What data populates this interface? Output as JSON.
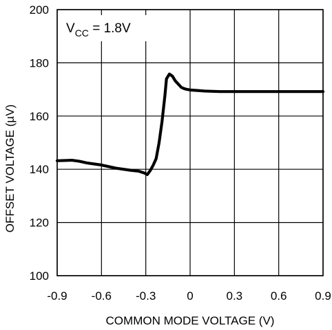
{
  "chart_data": {
    "type": "line",
    "title": "",
    "xlabel": "COMMON MODE VOLTAGE (V)",
    "ylabel": "OFFSET VOLTAGE (µV)",
    "xlim": [
      -0.9,
      0.9
    ],
    "ylim": [
      100,
      200
    ],
    "xticks": [
      "-0.9",
      "-0.6",
      "-0.3",
      "0",
      "0.3",
      "0.6",
      "0.9"
    ],
    "yticks": [
      "100",
      "120",
      "140",
      "160",
      "180",
      "200"
    ],
    "grid": true,
    "annotation": {
      "main": "V",
      "subscript": "CC",
      "value": " = 1.8V"
    },
    "series": [
      {
        "x": [
          -0.9,
          -0.8,
          -0.75,
          -0.7,
          -0.6,
          -0.5,
          -0.4,
          -0.35,
          -0.31,
          -0.29,
          -0.27,
          -0.25,
          -0.23,
          -0.21,
          -0.19,
          -0.17,
          -0.16,
          -0.14,
          -0.12,
          -0.1,
          -0.08,
          -0.06,
          -0.04,
          -0.02,
          0,
          0.05,
          0.1,
          0.15,
          0.2,
          0.3,
          0.4,
          0.5,
          0.6,
          0.7,
          0.8,
          0.9
        ],
        "y": [
          143.2,
          143.4,
          143,
          142.4,
          141.6,
          140.4,
          139.6,
          139.3,
          138.6,
          138,
          139.5,
          141.5,
          144,
          150,
          158,
          168,
          174,
          175.8,
          175,
          173.2,
          172,
          170.8,
          170.3,
          170,
          169.8,
          169.6,
          169.4,
          169.3,
          169.2,
          169.2,
          169.2,
          169.2,
          169.2,
          169.2,
          169.2,
          169.2
        ],
        "color": "#000000"
      }
    ]
  }
}
